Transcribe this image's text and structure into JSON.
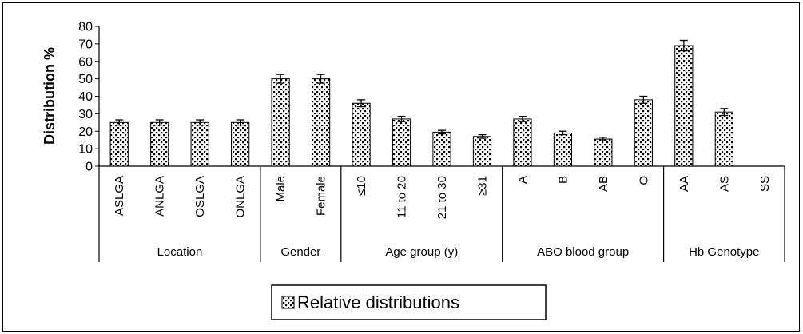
{
  "chart_data": {
    "type": "bar",
    "ylabel": "Distribution %",
    "ylim": [
      0,
      80
    ],
    "yticks": [
      0,
      10,
      20,
      30,
      40,
      50,
      60,
      70,
      80
    ],
    "grid": false,
    "legend_position": "bottom",
    "groups": [
      {
        "label": "Location",
        "categories": [
          "ASLGA",
          "ANLGA",
          "OSLGA",
          "ONLGA"
        ]
      },
      {
        "label": "Gender",
        "categories": [
          "Male",
          "Female"
        ]
      },
      {
        "label": "Age group (y)",
        "categories": [
          "≤10",
          "11 to 20",
          "21 to 30",
          "≥31"
        ]
      },
      {
        "label": "ABO blood group",
        "categories": [
          "A",
          "B",
          "AB",
          "O"
        ]
      },
      {
        "label": "Hb Genotype",
        "categories": [
          "AA",
          "AS",
          "SS"
        ]
      }
    ],
    "categories": [
      "ASLGA",
      "ANLGA",
      "OSLGA",
      "ONLGA",
      "Male",
      "Female",
      "≤10",
      "11 to 20",
      "21 to 30",
      "≥31",
      "A",
      "B",
      "AB",
      "O",
      "AA",
      "AS",
      "SS"
    ],
    "series": [
      {
        "name": "Relative distributions",
        "values": [
          25,
          25,
          25,
          25,
          50,
          50,
          36,
          27,
          19.5,
          17,
          27,
          19,
          15.5,
          38,
          69,
          31,
          0
        ],
        "error": [
          1.5,
          1.5,
          1.5,
          1.5,
          2.5,
          2.5,
          2,
          1.5,
          1,
          1,
          1.5,
          1,
          1,
          2,
          3,
          2,
          0
        ]
      }
    ]
  }
}
